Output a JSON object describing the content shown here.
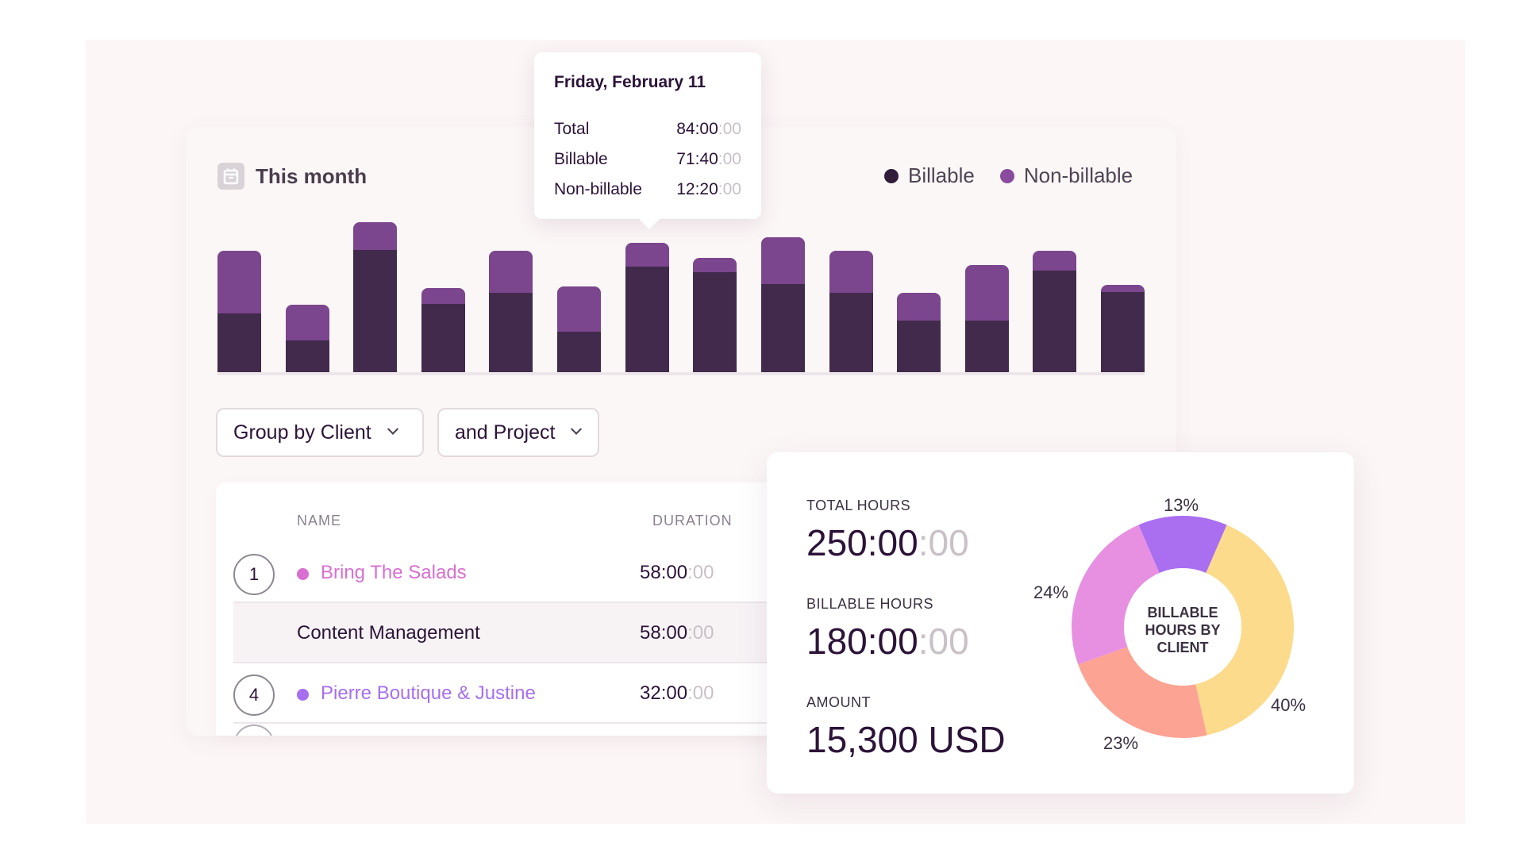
{
  "header": {
    "title": "This month",
    "icon": "calendar-icon"
  },
  "legend": [
    {
      "label": "Billable",
      "color": "#2f1d3a"
    },
    {
      "label": "Non-billable",
      "color": "#8a4a9e"
    }
  ],
  "chart_data": {
    "type": "bar",
    "stacked": true,
    "series": [
      {
        "name": "Billable",
        "values": [
          60,
          33,
          124,
          70,
          81,
          42,
          107,
          102,
          90,
          81,
          53,
          53,
          103,
          82
        ]
      },
      {
        "name": "Non-billable",
        "values": [
          63,
          36,
          28,
          16,
          42,
          45,
          24,
          14,
          47,
          42,
          28,
          56,
          20,
          7
        ]
      }
    ],
    "colors": {
      "Billable": "#412a4c",
      "Non-billable": "#7b468e"
    },
    "ylim": [
      0,
      160
    ],
    "grid": false,
    "legend_position": "top-right"
  },
  "tooltip": {
    "date": "Friday, February 11",
    "rows": [
      {
        "label": "Total",
        "main": "84:00",
        "faint": ":00"
      },
      {
        "label": "Billable",
        "main": "71:40",
        "faint": ":00"
      },
      {
        "label": "Non-billable",
        "main": "12:20",
        "faint": ":00"
      }
    ]
  },
  "controls": {
    "group_by": "Group by Client",
    "sub_group": "and Project"
  },
  "table": {
    "columns": {
      "name": "NAME",
      "duration": "DURATION"
    },
    "rows": [
      {
        "number": "1",
        "name": "Bring The Salads",
        "color": "#d96fd1",
        "duration_main": "58:00",
        "duration_faint": ":00"
      },
      {
        "number": "",
        "name": "Content Management",
        "color": "",
        "duration_main": "58:00",
        "duration_faint": ":00"
      },
      {
        "number": "4",
        "name": "Pierre Boutique & Justine",
        "color": "#a66ff0",
        "duration_main": "32:00",
        "duration_faint": ":00"
      }
    ]
  },
  "summary": {
    "total_label": "TOTAL HOURS",
    "total_main": "250:00",
    "total_faint": ":00",
    "billable_label": "BILLABLE HOURS",
    "billable_main": "180:00",
    "billable_faint": ":00",
    "amount_label": "AMOUNT",
    "amount_value": "15,300 USD"
  },
  "donut": {
    "center_label_line1": "BILLABLE",
    "center_label_line2": "HOURS BY",
    "center_label_line3": "CLIENT",
    "slices": [
      {
        "label": "13%",
        "value": 13,
        "color": "#a96ff0"
      },
      {
        "label": "40%",
        "value": 40,
        "color": "#fddb8d"
      },
      {
        "label": "23%",
        "value": 23,
        "color": "#fca394"
      },
      {
        "label": "24%",
        "value": 24,
        "color": "#e78fe1"
      }
    ]
  }
}
